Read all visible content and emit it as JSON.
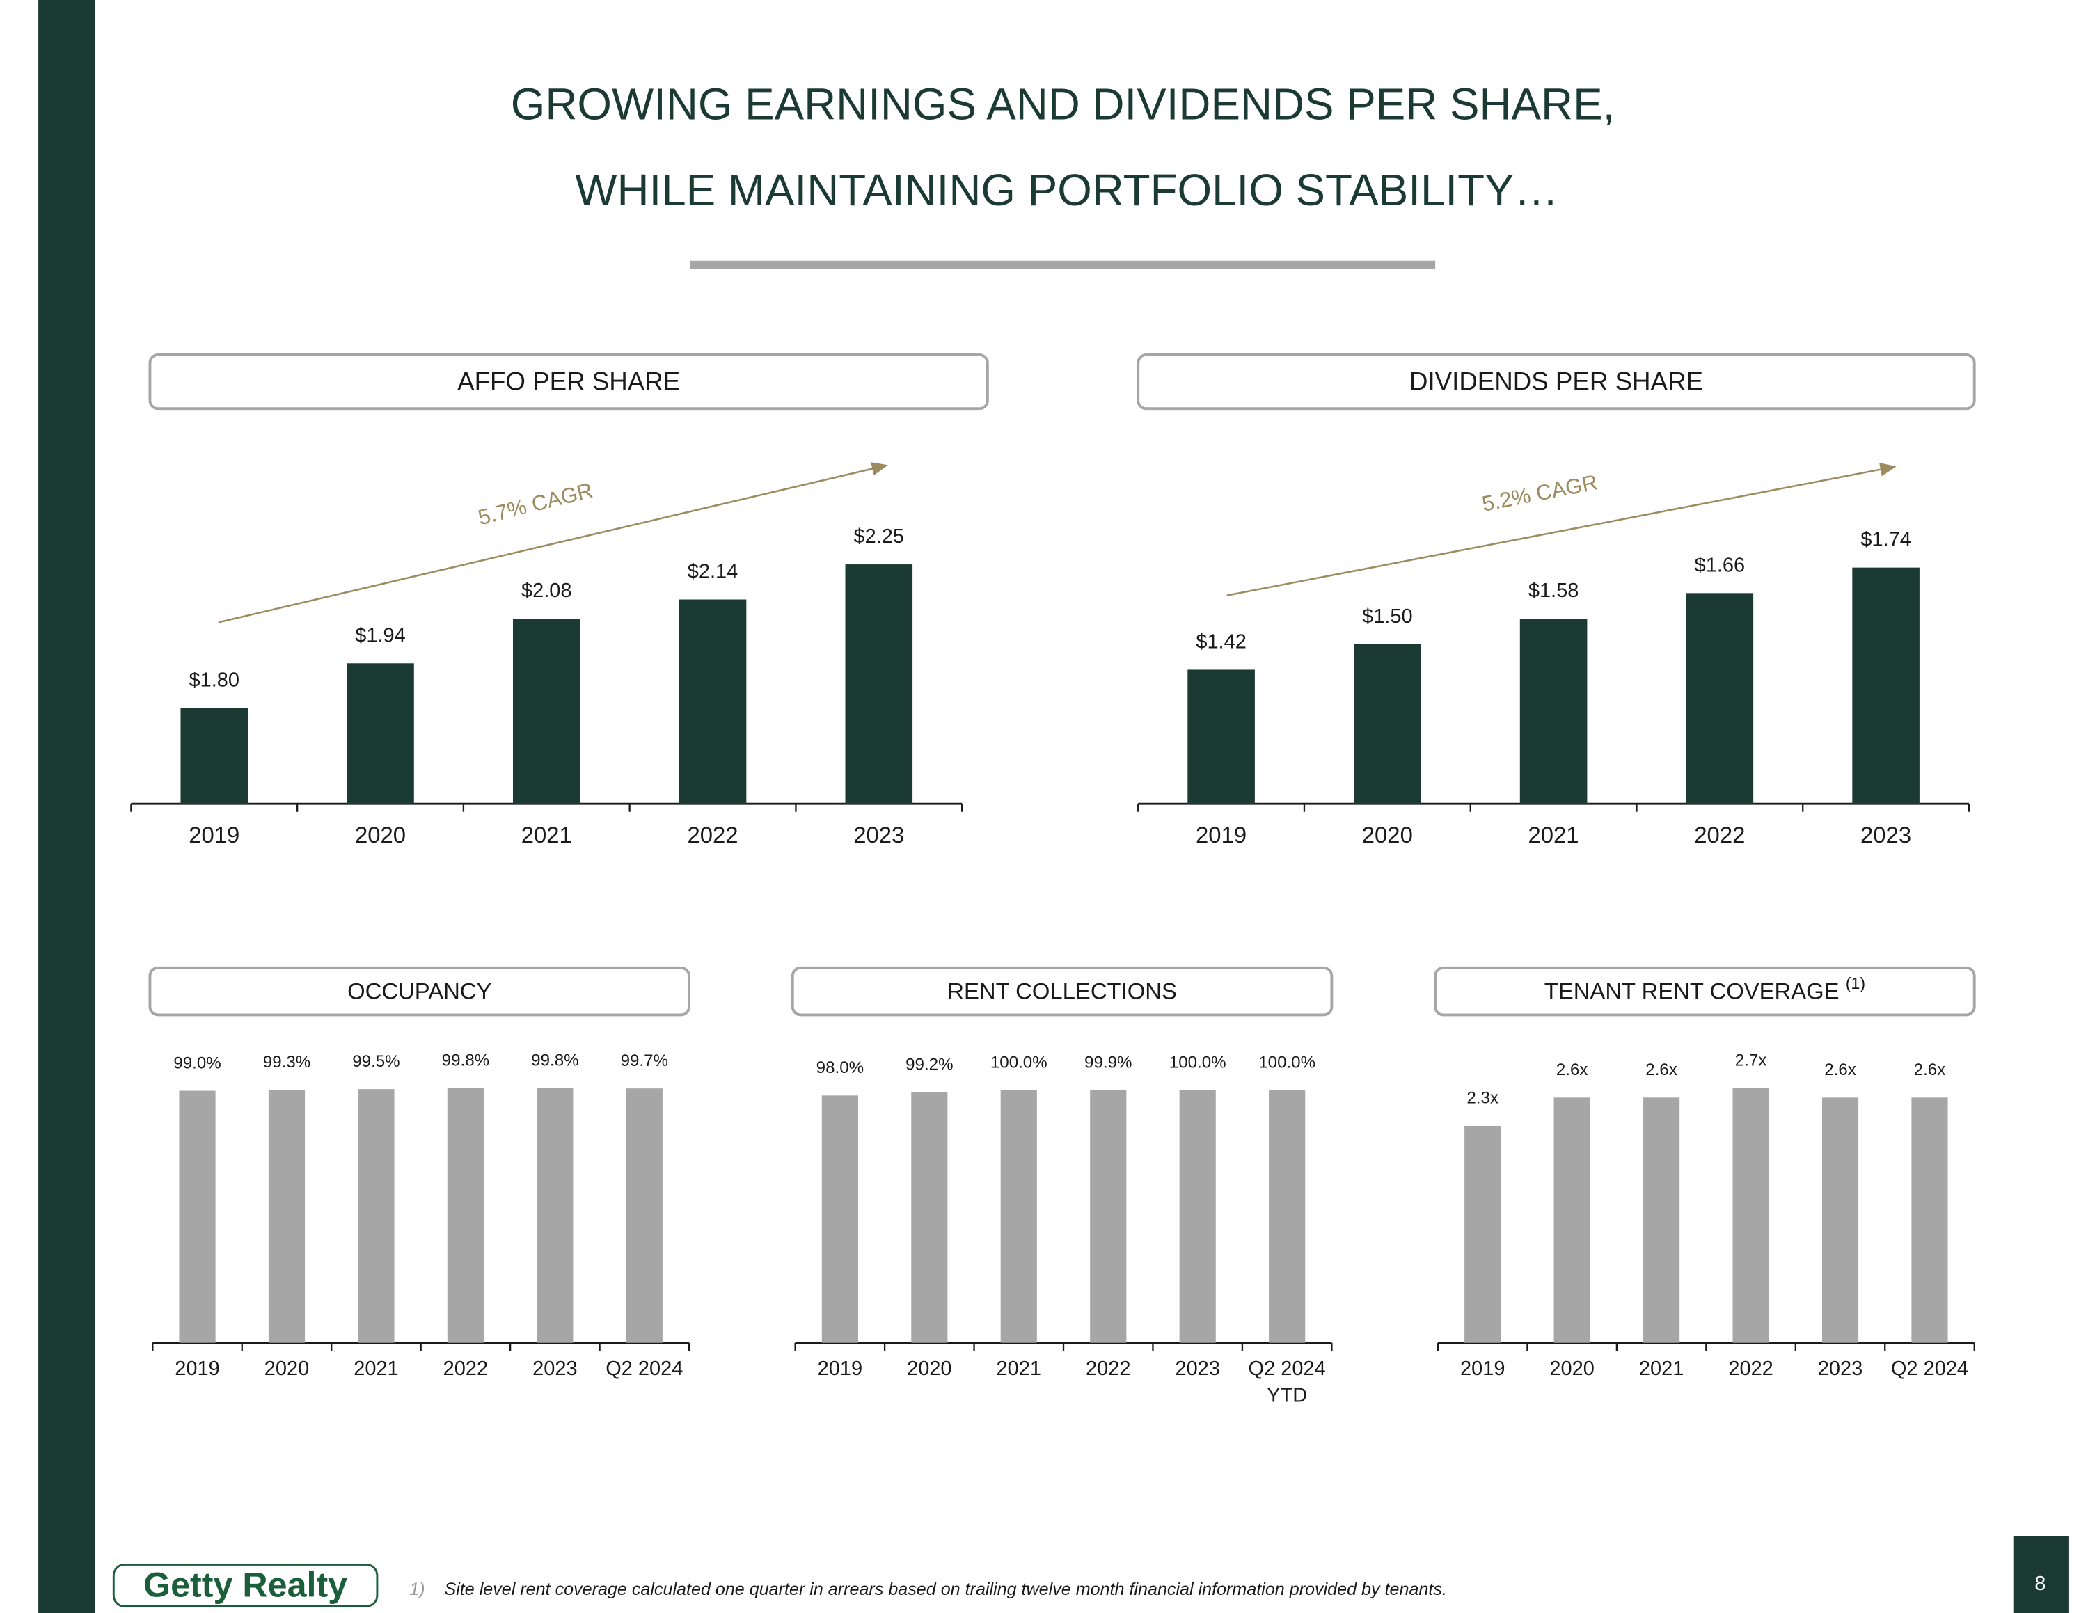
{
  "header": {
    "title_line1": "GROWING EARNINGS AND DIVIDENDS PER SHARE,",
    "title_line2": "WHILE MAINTAINING PORTFOLIO STABILITY…"
  },
  "chart_data": [
    {
      "type": "bar",
      "title": "AFFO PER SHARE",
      "annotation": "5.7% CAGR",
      "color": "#1b3a33",
      "categories": [
        "2019",
        "2020",
        "2021",
        "2022",
        "2023"
      ],
      "values": [
        1.8,
        1.94,
        2.08,
        2.14,
        2.25
      ],
      "value_labels": [
        "$1.80",
        "$1.94",
        "$2.08",
        "$2.14",
        "$2.25"
      ],
      "ylim": [
        1.5,
        2.3
      ]
    },
    {
      "type": "bar",
      "title": "DIVIDENDS PER SHARE",
      "annotation": "5.2% CAGR",
      "color": "#1b3a33",
      "categories": [
        "2019",
        "2020",
        "2021",
        "2022",
        "2023"
      ],
      "values": [
        1.42,
        1.5,
        1.58,
        1.66,
        1.74
      ],
      "value_labels": [
        "$1.42",
        "$1.50",
        "$1.58",
        "$1.66",
        "$1.74"
      ],
      "ylim": [
        1.0,
        1.8
      ]
    },
    {
      "type": "bar",
      "title": "OCCUPANCY",
      "color": "#a6a6a6",
      "categories": [
        "2019",
        "2020",
        "2021",
        "2022",
        "2023",
        "Q2 2024"
      ],
      "values": [
        99.0,
        99.3,
        99.5,
        99.8,
        99.8,
        99.7
      ],
      "value_labels": [
        "99.0%",
        "99.3%",
        "99.5%",
        "99.8%",
        "99.8%",
        "99.7%"
      ],
      "ylim": [
        24,
        104
      ]
    },
    {
      "type": "bar",
      "title": "RENT COLLECTIONS",
      "color": "#a6a6a6",
      "categories": [
        "2019",
        "2020",
        "2021",
        "2022",
        "2023",
        "Q2 2024 YTD"
      ],
      "values": [
        98.0,
        99.2,
        100.0,
        99.9,
        100.0,
        100.0
      ],
      "value_labels": [
        "98.0%",
        "99.2%",
        "100.0%",
        "99.9%",
        "100.0%",
        "100.0%"
      ],
      "ylim": [
        6,
        106
      ]
    },
    {
      "type": "bar",
      "title": "TENANT RENT COVERAGE",
      "title_note": "(1)",
      "color": "#a6a6a6",
      "categories": [
        "2019",
        "2020",
        "2021",
        "2022",
        "2023",
        "Q2 2024"
      ],
      "values": [
        2.3,
        2.6,
        2.6,
        2.7,
        2.6,
        2.6
      ],
      "value_labels": [
        "2.3x",
        "2.6x",
        "2.6x",
        "2.7x",
        "2.6x",
        "2.6x"
      ],
      "ylim": [
        0,
        2.85
      ]
    }
  ],
  "footer": {
    "logo": "Getty Realty",
    "footnote_marker": "1)",
    "footnote": "Site level rent coverage calculated one quarter in arrears based on trailing twelve month financial information provided by tenants.",
    "page_number": "8"
  }
}
